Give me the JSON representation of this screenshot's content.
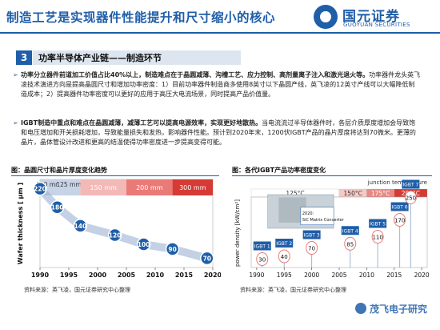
{
  "header": {
    "title": "制造工艺是实现器件性能提升和尺寸缩小的核心",
    "logo_cn": "国元证券",
    "logo_en": "GUOYUAN SECURITIES"
  },
  "section": {
    "number": "3",
    "title": "功率半导体产业链——制造环节"
  },
  "bullets": [
    {
      "bold": "功率分立器件前道加工价值占比40%以上，制造难点在于晶圆减薄、沟槽工艺、应力控制、高剂量离子注入和激光退火等。",
      "text": "功率器件龙头英飞凌技术演进方向是提高晶圆尺寸和增加功率密度：1）目前功率器件制造商多使用8英寸以下晶圆产线，英飞凌的12英寸产线可以大幅降低制造成本；2）提高器件功率密度可以更好的应用于高压大电流场景，同时提高产品价值量。"
    },
    {
      "bold": "IGBT制造中重点和难点在晶圆减薄，减薄工艺可以提高电源效率，实现更好地散热。",
      "text": "当电流流过半导体器件时，各层介质厚度增加会导致饱和电压增加和开关损耗增加，导致能量损失和发热，影响器件性能。预计到2020年末，1200伏IGBT产品的晶片厚度将达到70微米。更薄的晶片，晶体管设计改进和更高的结温使得功率密度进一步提高变得可能。"
    }
  ],
  "figures": {
    "left_caption": "图：晶圆尺寸和晶片厚度变化趋势",
    "right_caption": "图：各代IGBT产品功率密度变化",
    "left_source": "资料来源：英飞凌，国元证券研究中心整理",
    "right_source": "资料来源：英飞凌，国元证券研究中心整理"
  },
  "watermark": "茂飞电子研究",
  "chart_data": [
    {
      "type": "scatter",
      "title": "",
      "ylabel": "Wafer thickness [ µm ]",
      "x_ticks": [
        "1990",
        "1995",
        "2000",
        "2005",
        "2010",
        "2015",
        "2020"
      ],
      "bands": [
        {
          "label": "100 mm",
          "color": "#c7d3e6",
          "text_color": "#333333"
        },
        {
          "label": "125 mm",
          "color": "#c7d3e6",
          "text_color": "#333333"
        },
        {
          "label": "150 mm",
          "color": "#f3b9b7",
          "text_color": "#ffffff"
        },
        {
          "label": "200 mm",
          "color": "#e97a76",
          "text_color": "#ffffff"
        },
        {
          "label": "300 mm",
          "color": "#d63a34",
          "text_color": "#ffffff"
        }
      ],
      "points": [
        {
          "x": 1990,
          "y": 220
        },
        {
          "x": 1993,
          "y": 180
        },
        {
          "x": 1997,
          "y": 140
        },
        {
          "x": 2003,
          "y": 120
        },
        {
          "x": 2008,
          "y": 100
        },
        {
          "x": 2013,
          "y": 90
        },
        {
          "x": 2019,
          "y": 70
        }
      ]
    },
    {
      "type": "bar",
      "title": "",
      "ylabel": "power density [kW/cm²]",
      "x_ticks": [
        "1990",
        "1995",
        "2000",
        "2005",
        "2010",
        "2015",
        "2020"
      ],
      "legend_title": "junction temperature",
      "temperature_bands": [
        {
          "label": "125°C",
          "color": "#ffffff"
        },
        {
          "label": "150°C",
          "color": "#f6c9c6"
        },
        {
          "label": "175°C",
          "color": "#ea8884"
        },
        {
          "label": "200°C",
          "color": "#d63a34"
        }
      ],
      "inset_label": "2020: SiC Matrix Converter",
      "bars": [
        {
          "label": "IGBT 1",
          "x": 1991,
          "value": 30
        },
        {
          "label": "IGBT 2",
          "x": 1995,
          "value": 40
        },
        {
          "label": "IGBT 3",
          "x": 2000,
          "value": 70
        },
        {
          "label": "IGBT 4",
          "x": 2007,
          "value": 85
        },
        {
          "label": "IGBT 5",
          "x": 2012,
          "value": 110
        },
        {
          "label": "IGBT 6",
          "x": 2016,
          "value": 170
        },
        {
          "label": "IGBT 7",
          "x": 2018,
          "value": 250
        }
      ]
    }
  ]
}
